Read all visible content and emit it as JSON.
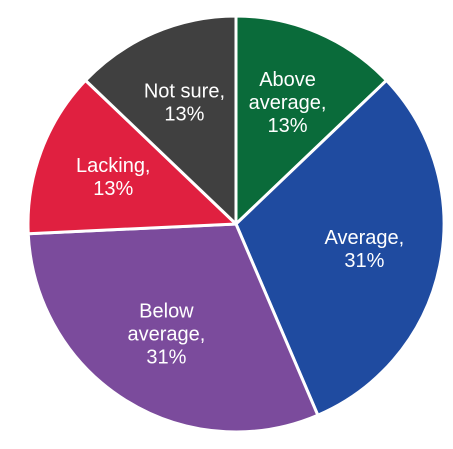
{
  "chart_data": {
    "type": "pie",
    "title": "",
    "slices": [
      {
        "label_line1": "Above",
        "label_line2": "average,",
        "label_line3": "13%",
        "value": 13,
        "color": "#0a6b3a"
      },
      {
        "label_line1": "Average,",
        "label_line2": "31%",
        "value": 31,
        "color": "#1f4ba0"
      },
      {
        "label_line1": "Below",
        "label_line2": "average,",
        "label_line3": "31%",
        "value": 31,
        "color": "#7b4b9c"
      },
      {
        "label_line1": "Lacking,",
        "label_line2": "13%",
        "value": 13,
        "color": "#e02040"
      },
      {
        "label_line1": "Not sure,",
        "label_line2": "13%",
        "value": 13,
        "color": "#404040"
      }
    ]
  }
}
